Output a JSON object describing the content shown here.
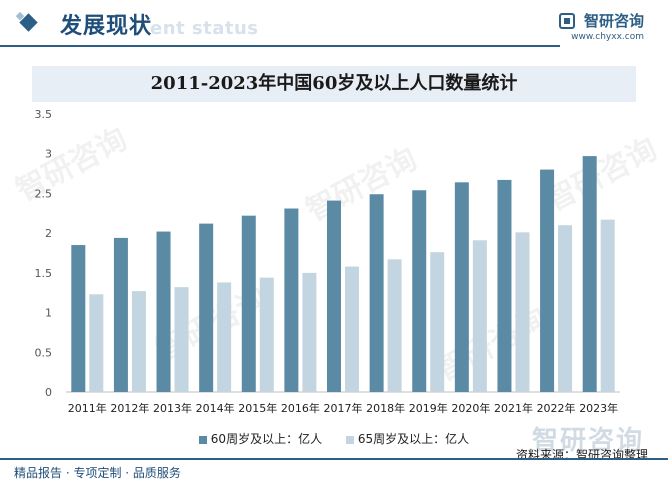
{
  "header": {
    "title": "发展现状",
    "ghost_text": "ent status",
    "logo_name": "智研咨询",
    "logo_url": "www.chyxx.com"
  },
  "watermark_text": "智研咨询",
  "chart_data": {
    "type": "bar",
    "title": "2011-2023年中国60岁及以上人口数量统计",
    "categories": [
      "2011年",
      "2012年",
      "2013年",
      "2014年",
      "2015年",
      "2016年",
      "2017年",
      "2018年",
      "2019年",
      "2020年",
      "2021年",
      "2022年",
      "2023年"
    ],
    "series": [
      {
        "name": "60周岁及以上：亿人",
        "color": "#5b8aa5",
        "values": [
          1.85,
          1.94,
          2.02,
          2.12,
          2.22,
          2.31,
          2.41,
          2.49,
          2.54,
          2.64,
          2.67,
          2.8,
          2.97
        ]
      },
      {
        "name": "65周岁及以上：亿人",
        "color": "#c2d5e0",
        "values": [
          1.23,
          1.27,
          1.32,
          1.38,
          1.44,
          1.5,
          1.58,
          1.67,
          1.76,
          1.91,
          2.01,
          2.1,
          2.17
        ]
      }
    ],
    "yticks": [
      "0",
      "0.5",
      "1",
      "1.5",
      "2",
      "2.5",
      "3",
      "3.5"
    ],
    "ylim": [
      0,
      3.5
    ],
    "grid": false,
    "legend_position": "bottom"
  },
  "source": "资料来源：智研咨询整理",
  "brand": "智研咨询",
  "footer": "精品报告 · 专项定制 · 品质服务"
}
